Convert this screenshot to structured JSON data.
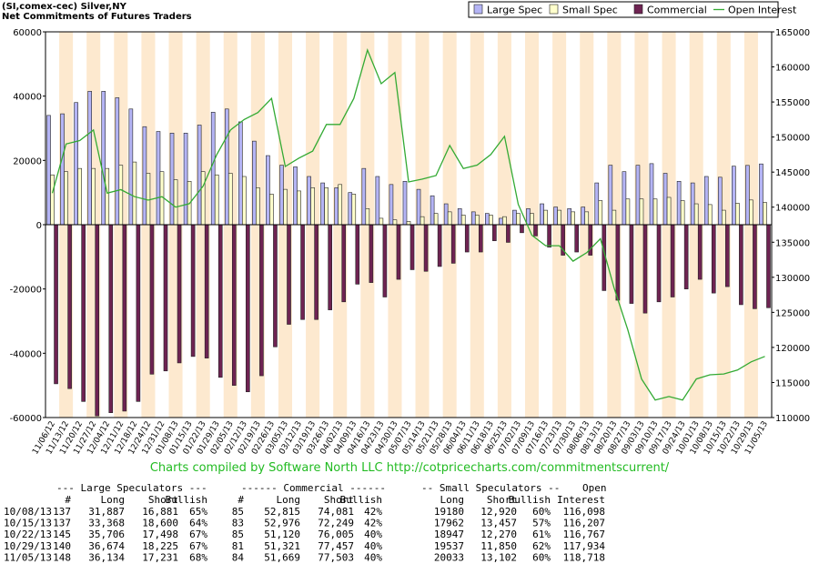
{
  "chart_data": {
    "type": "bar",
    "title": "(SI,comex-cec) Silver,NY",
    "subtitle": "Net Commitments of Futures Traders",
    "categories": [
      "11/06/12",
      "11/13/12",
      "11/20/12",
      "11/27/12",
      "12/04/12",
      "12/11/12",
      "12/18/12",
      "12/24/12",
      "12/31/12",
      "01/08/13",
      "01/15/13",
      "01/22/13",
      "01/29/13",
      "02/05/13",
      "02/12/13",
      "02/19/13",
      "02/26/13",
      "03/05/13",
      "03/12/13",
      "03/19/13",
      "03/26/13",
      "04/02/13",
      "04/09/13",
      "04/16/13",
      "04/23/13",
      "04/30/13",
      "05/07/13",
      "05/14/13",
      "05/21/13",
      "05/28/13",
      "06/04/13",
      "06/11/13",
      "06/18/13",
      "06/25/13",
      "07/02/13",
      "07/09/13",
      "07/16/13",
      "07/23/13",
      "07/30/13",
      "08/06/13",
      "08/13/13",
      "08/20/13",
      "08/27/13",
      "09/03/13",
      "09/10/13",
      "09/17/13",
      "09/24/13",
      "10/01/13",
      "10/08/13",
      "10/15/13",
      "10/22/13",
      "10/29/13",
      "11/05/13"
    ],
    "series": [
      {
        "name": "Large Spec",
        "color": "#b4b4f5",
        "values": [
          34000,
          34500,
          38000,
          41500,
          41500,
          39500,
          36000,
          30500,
          29000,
          28500,
          28500,
          31000,
          35000,
          36000,
          32000,
          26000,
          21500,
          18500,
          18000,
          15000,
          13000,
          11500,
          10000,
          17500,
          15000,
          12500,
          13500,
          11000,
          9000,
          6500,
          5000,
          4000,
          3500,
          2000,
          4500,
          5000,
          6500,
          5500,
          5000,
          5500,
          13000,
          18500,
          16500,
          18500,
          19000,
          16000,
          13500,
          13000,
          15006,
          14768,
          18208,
          18449,
          18903
        ]
      },
      {
        "name": "Small Spec",
        "color": "#ffffcc",
        "values": [
          15500,
          16500,
          17500,
          17500,
          17500,
          18500,
          19500,
          16000,
          16500,
          14000,
          13500,
          16500,
          15500,
          16000,
          15000,
          11500,
          9500,
          11000,
          10500,
          11500,
          11500,
          12500,
          9500,
          5000,
          2000,
          1500,
          1000,
          2500,
          3500,
          4000,
          3000,
          3000,
          3000,
          2500,
          3500,
          3500,
          4500,
          4500,
          4000,
          4000,
          7500,
          4500,
          8000,
          8000,
          8000,
          8500,
          7500,
          6500,
          6260,
          4505,
          6677,
          7687,
          6931
        ]
      },
      {
        "name": "Commercial",
        "color": "#6e2352",
        "values": [
          -49500,
          -51000,
          -55000,
          -59500,
          -58500,
          -58000,
          -55000,
          -46500,
          -45500,
          -43000,
          -41000,
          -41500,
          -47500,
          -50000,
          -52000,
          -47000,
          -38000,
          -31000,
          -29500,
          -29500,
          -26500,
          -24000,
          -18500,
          -18000,
          -22500,
          -17000,
          -14000,
          -14500,
          -13000,
          -12000,
          -8500,
          -8500,
          -5000,
          -5500,
          -2500,
          -3500,
          -7000,
          -9500,
          -8500,
          -9500,
          -20500,
          -23500,
          -24500,
          -27500,
          -24000,
          -22500,
          -20000,
          -17000,
          -21266,
          -19273,
          -24885,
          -26136,
          -25834
        ]
      },
      {
        "name": "Open Interest",
        "color": "#33aa33",
        "type": "line",
        "axis": "y2",
        "values": [
          142000,
          149000,
          149500,
          151000,
          142000,
          142500,
          141500,
          141000,
          141500,
          140000,
          140500,
          143000,
          147500,
          151000,
          152500,
          153500,
          155500,
          145800,
          147000,
          148000,
          151800,
          151800,
          155500,
          162400,
          157600,
          159200,
          143600,
          144000,
          144500,
          148800,
          145500,
          146000,
          147500,
          150100,
          140400,
          136000,
          134500,
          134500,
          132300,
          133500,
          135500,
          128500,
          122500,
          115500,
          112500,
          113000,
          112500,
          115500,
          116098,
          116207,
          116767,
          117934,
          118718
        ]
      }
    ],
    "ylim": [
      -60000,
      60000
    ],
    "yticks": [
      -60000,
      -40000,
      -20000,
      0,
      20000,
      40000,
      60000
    ],
    "y2lim": [
      110000,
      165000
    ],
    "y2ticks": [
      110000,
      115000,
      120000,
      125000,
      130000,
      135000,
      140000,
      145000,
      150000,
      155000,
      160000,
      165000
    ],
    "legend": "top-right",
    "stripe_color": "#fde9cf"
  },
  "credit": "Charts compiled by Software North LLC  http://cotpricecharts.com/commitmentscurrent/",
  "table": {
    "group_headers": [
      "--- Large Speculators ---",
      "------ Commercial ------",
      "-- Small Speculators --",
      "Open"
    ],
    "headers": [
      "#",
      "Long",
      "Short",
      "Bullish",
      "#",
      "Long",
      "Short",
      "Bullish",
      "Long",
      "Short",
      "Bullish",
      "Interest"
    ],
    "rows": [
      [
        "10/08/13",
        "137",
        "31,887",
        "16,881",
        "65%",
        "85",
        "52,815",
        "74,081",
        "42%",
        "19180",
        "12,920",
        "60%",
        "116,098"
      ],
      [
        "10/15/13",
        "137",
        "33,368",
        "18,600",
        "64%",
        "83",
        "52,976",
        "72,249",
        "42%",
        "17962",
        "13,457",
        "57%",
        "116,207"
      ],
      [
        "10/22/13",
        "145",
        "35,706",
        "17,498",
        "67%",
        "85",
        "51,120",
        "76,005",
        "40%",
        "18947",
        "12,270",
        "61%",
        "116,767"
      ],
      [
        "10/29/13",
        "140",
        "36,674",
        "18,225",
        "67%",
        "81",
        "51,321",
        "77,457",
        "40%",
        "19537",
        "11,850",
        "62%",
        "117,934"
      ],
      [
        "11/05/13",
        "148",
        "36,134",
        "17,231",
        "68%",
        "84",
        "51,669",
        "77,503",
        "40%",
        "20033",
        "13,102",
        "60%",
        "118,718"
      ]
    ]
  }
}
